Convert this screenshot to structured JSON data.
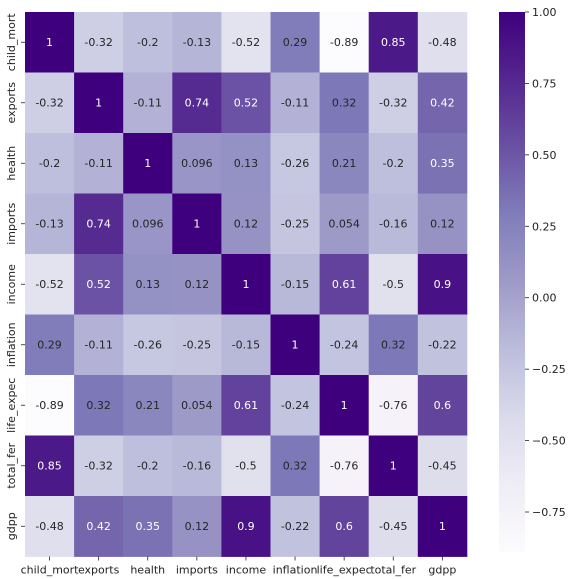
{
  "chart_data": {
    "type": "heatmap",
    "title": "",
    "xlabel": "",
    "ylabel": "",
    "variables": [
      "child_mort",
      "exports",
      "health",
      "imports",
      "income",
      "inflation",
      "life_expec",
      "total_fer",
      "gdpp"
    ],
    "matrix": [
      [
        1,
        -0.32,
        -0.2,
        -0.13,
        -0.52,
        0.29,
        -0.89,
        0.85,
        -0.48
      ],
      [
        -0.32,
        1,
        -0.11,
        0.74,
        0.52,
        -0.11,
        0.32,
        -0.32,
        0.42
      ],
      [
        -0.2,
        -0.11,
        1,
        0.096,
        0.13,
        -0.26,
        0.21,
        -0.2,
        0.35
      ],
      [
        -0.13,
        0.74,
        0.096,
        1,
        0.12,
        -0.25,
        0.054,
        -0.16,
        0.12
      ],
      [
        -0.52,
        0.52,
        0.13,
        0.12,
        1,
        -0.15,
        0.61,
        -0.5,
        0.9
      ],
      [
        0.29,
        -0.11,
        -0.26,
        -0.25,
        -0.15,
        1,
        -0.24,
        0.32,
        -0.22
      ],
      [
        -0.89,
        0.32,
        0.21,
        0.054,
        0.61,
        -0.24,
        1,
        -0.76,
        0.6
      ],
      [
        0.85,
        -0.32,
        -0.2,
        -0.16,
        -0.5,
        0.32,
        -0.76,
        1,
        -0.45
      ],
      [
        -0.48,
        0.42,
        0.35,
        0.12,
        0.9,
        -0.22,
        0.6,
        -0.45,
        1
      ]
    ],
    "annot": true,
    "colormap": "Purples",
    "vmin": -0.89,
    "vmax": 1,
    "colorbar": {
      "ticks": [
        1.0,
        0.75,
        0.5,
        0.25,
        0.0,
        -0.25,
        -0.5,
        -0.75
      ],
      "tick_labels": [
        "1.00",
        "0.75",
        "0.50",
        "0.25",
        "0.00",
        "−0.25",
        "−0.50",
        "−0.75"
      ],
      "location": "right"
    },
    "colors": {
      "low": "#fcfbfd",
      "high": "#3f007d",
      "text_dark": "#262626",
      "text_light": "#ffffff"
    }
  }
}
